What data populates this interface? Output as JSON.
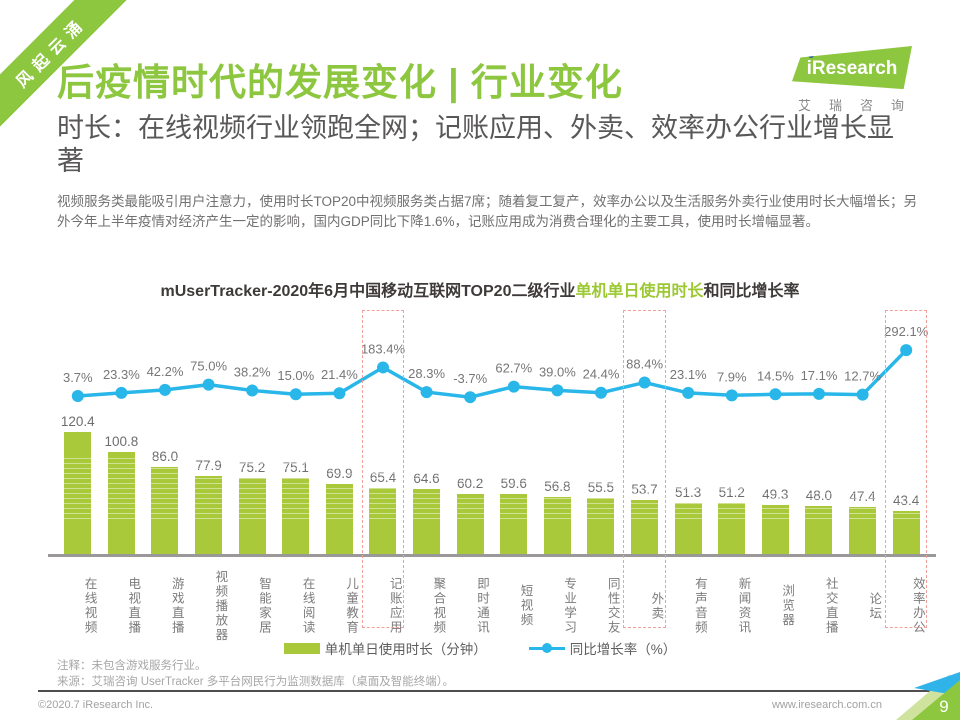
{
  "ribbon_text": "风起云涌",
  "logo": {
    "brand": "iResearch",
    "sub": "艾瑞咨询"
  },
  "header": {
    "title": "后疫情时代的发展变化 | 行业变化",
    "subtitle": "时长：在线视频行业领跑全网；记账应用、外卖、效率办公行业增长显著",
    "paragraph": "视频服务类最能吸引用户注意力，使用时长TOP20中视频服务类占据7席；随着复工复产，效率办公以及生活服务外卖行业使用时长大幅增长；另外今年上半年疫情对经济产生一定的影响，国内GDP同比下降1.6%，记账应用成为消费合理化的主要工具，使用时长增幅显著。"
  },
  "chart_title": {
    "pre": "mUserTracker-2020年6月中国移动互联网TOP20二级行业",
    "highlight": "单机单日使用时长",
    "post": "和同比增长率"
  },
  "chart_data": {
    "type": "bar",
    "categories": [
      "在线视频",
      "电视直播",
      "游戏直播",
      "视频播放器",
      "智能家居",
      "在线阅读",
      "儿童教育",
      "记账应用",
      "聚合视频",
      "即时通讯",
      "短视频",
      "专业学习",
      "同性交友",
      "外卖",
      "有声音频",
      "新闻资讯",
      "浏览器",
      "社交直播",
      "论坛",
      "效率办公"
    ],
    "series": [
      {
        "name": "单机单日使用时长（分钟）",
        "type": "bar",
        "values": [
          120.4,
          100.8,
          86.0,
          77.9,
          75.2,
          75.1,
          69.9,
          65.4,
          64.6,
          60.2,
          59.6,
          56.8,
          55.5,
          53.7,
          51.3,
          51.2,
          49.3,
          48.0,
          47.4,
          43.4
        ]
      },
      {
        "name": "同比增长率（%）",
        "type": "line",
        "values": [
          3.7,
          23.3,
          42.2,
          75.0,
          38.2,
          15.0,
          21.4,
          183.4,
          28.3,
          -3.7,
          62.7,
          39.0,
          24.4,
          88.4,
          23.1,
          7.9,
          14.5,
          17.1,
          12.7,
          292.1
        ]
      }
    ],
    "highlighted_categories": [
      "记账应用",
      "外卖",
      "效率办公"
    ],
    "highlight_indexes": [
      7,
      13,
      19
    ],
    "legend_position": "bottom",
    "grid": false,
    "colors": {
      "bar": "#a9c93a",
      "line": "#29b6e8",
      "highlight_box": "#f2a09b"
    }
  },
  "legend": {
    "bar_label": "单机单日使用时长（分钟）",
    "line_label": "同比增长率（%）"
  },
  "notes": {
    "line1": "注释：未包含游戏服务行业。",
    "line2": "来源：艾瑞咨询 UserTracker 多平台网民行为监测数据库（桌面及智能终端）。"
  },
  "footer": {
    "left": "©2020.7 iResearch Inc.",
    "right": "www.iresearch.com.cn",
    "page": "9"
  }
}
